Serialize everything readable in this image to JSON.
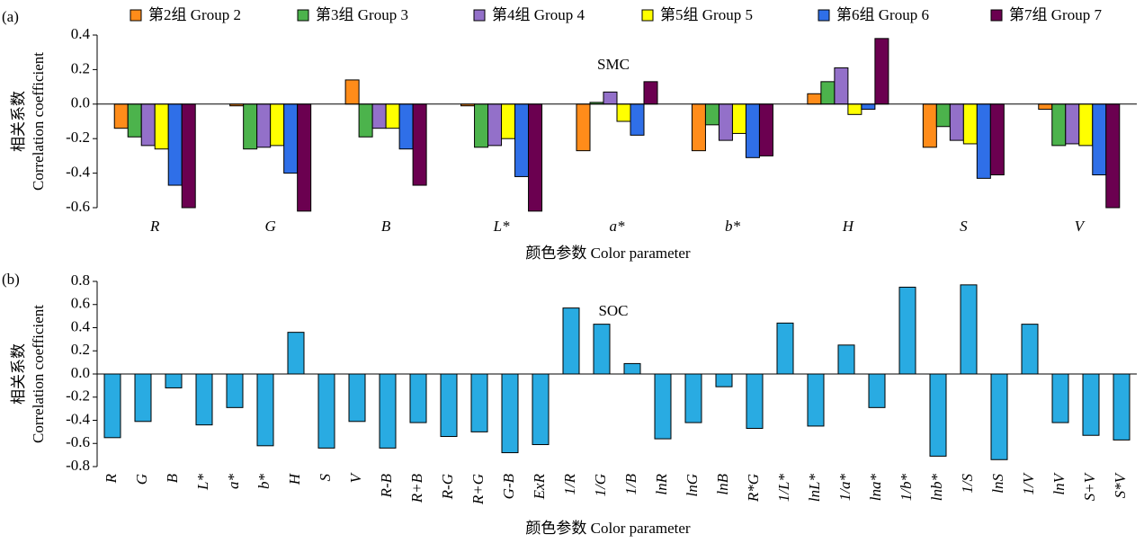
{
  "chart_data": [
    {
      "type": "grouped-bar",
      "panel_label": "(a)",
      "title": "SMC",
      "y_label": [
        "相关系数",
        "Correlation coefficient"
      ],
      "x_label": "颜色参数 Color parameter",
      "categories": [
        "R",
        "G",
        "B",
        "L*",
        "a*",
        "b*",
        "H",
        "S",
        "V"
      ],
      "series": [
        {
          "name": "第2组 Group 2",
          "color": "#ff8c1a",
          "values": [
            -0.14,
            -0.01,
            0.14,
            -0.01,
            -0.27,
            -0.27,
            0.06,
            -0.25,
            -0.03
          ]
        },
        {
          "name": "第3组 Group 3",
          "color": "#4cb34c",
          "values": [
            -0.19,
            -0.26,
            -0.19,
            -0.25,
            0.01,
            -0.12,
            0.13,
            -0.13,
            -0.24
          ]
        },
        {
          "name": "第4组 Group 4",
          "color": "#9370c9",
          "values": [
            -0.24,
            -0.25,
            -0.14,
            -0.24,
            0.07,
            -0.21,
            0.21,
            -0.21,
            -0.23
          ]
        },
        {
          "name": "第5组 Group 5",
          "color": "#ffff00",
          "values": [
            -0.26,
            -0.24,
            -0.14,
            -0.2,
            -0.1,
            -0.17,
            -0.06,
            -0.23,
            -0.24
          ]
        },
        {
          "name": "第6组 Group 6",
          "color": "#2f6fe8",
          "values": [
            -0.47,
            -0.4,
            -0.26,
            -0.42,
            -0.18,
            -0.31,
            -0.03,
            -0.43,
            -0.41
          ]
        },
        {
          "name": "第7组 Group 7",
          "color": "#6b0050",
          "values": [
            -0.6,
            -0.62,
            -0.47,
            -0.62,
            0.13,
            -0.3,
            0.38,
            -0.41,
            -0.6
          ]
        }
      ],
      "ylim": [
        -0.6,
        0.4
      ],
      "yticks": [
        0.4,
        0.2,
        {
          "value": 0,
          "label": "0.0"
        },
        -0.2,
        -0.4,
        -0.6
      ]
    },
    {
      "type": "bar",
      "panel_label": "(b)",
      "title": "SOC",
      "y_label": [
        "相关系数",
        "Correlation coefficient"
      ],
      "x_label": "颜色参数 Color parameter",
      "categories": [
        "R",
        "G",
        "B",
        "L*",
        "a*",
        "b*",
        "H",
        "S",
        "V",
        "R-B",
        "R+B",
        "R-G",
        "R+G",
        "G-B",
        "ExR",
        "1/R",
        "1/G",
        "1/B",
        "lnR",
        "lnG",
        "lnB",
        "R*G",
        "1/L*",
        "lnL*",
        "1/a*",
        "lna*",
        "1/b*",
        "lnb*",
        "1/S",
        "lnS",
        "1/V",
        "lnV",
        "S+V",
        "S*V"
      ],
      "values": [
        -0.55,
        -0.41,
        -0.12,
        -0.44,
        -0.29,
        -0.62,
        0.36,
        -0.64,
        -0.41,
        -0.64,
        -0.42,
        -0.54,
        -0.5,
        -0.68,
        -0.61,
        0.57,
        0.43,
        0.09,
        -0.56,
        -0.42,
        -0.11,
        -0.47,
        0.44,
        -0.45,
        0.25,
        -0.29,
        0.75,
        -0.71,
        0.77,
        -0.74,
        0.43,
        -0.42,
        -0.53,
        -0.57
      ],
      "color": "#29abe2",
      "ylim": [
        -0.8,
        0.8
      ],
      "yticks": [
        0.8,
        0.6,
        0.4,
        0.2,
        {
          "value": 0,
          "label": "0.0"
        },
        -0.2,
        -0.4,
        -0.6,
        -0.8
      ]
    }
  ]
}
